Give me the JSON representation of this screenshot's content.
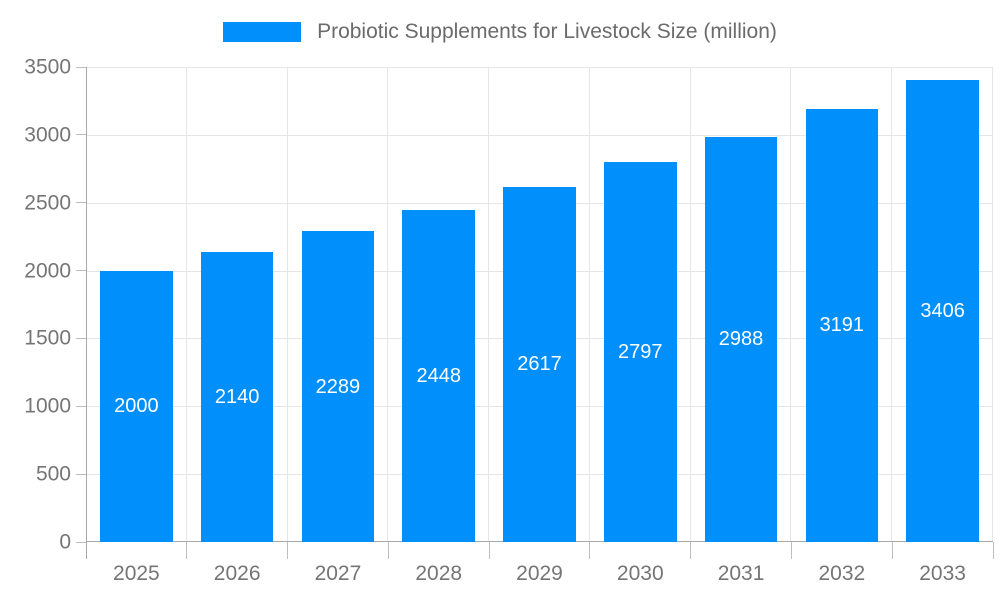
{
  "legend": {
    "series_label": "Probiotic Supplements for Livestock Size (million)"
  },
  "chart_data": {
    "type": "bar",
    "title": "Probiotic Supplements for Livestock Size (million)",
    "categories": [
      "2025",
      "2026",
      "2027",
      "2028",
      "2029",
      "2030",
      "2031",
      "2032",
      "2033"
    ],
    "values": [
      2000,
      2140,
      2289,
      2448,
      2617,
      2797,
      2988,
      3191,
      3406
    ],
    "xlabel": "",
    "ylabel": "",
    "ylim": [
      0,
      3500
    ],
    "ytick_step": 500,
    "grid": "both",
    "legend_position": "top",
    "value_labels": "inside-center",
    "colors": {
      "bar": "#008FFB",
      "value_label": "#ffffff",
      "grid": "#e6e6e6",
      "axis": "#a8a8a8",
      "tick": "#bdbdbd",
      "tick_label": "#757575",
      "title": "#6b6b6b",
      "background": "#ffffff"
    }
  }
}
